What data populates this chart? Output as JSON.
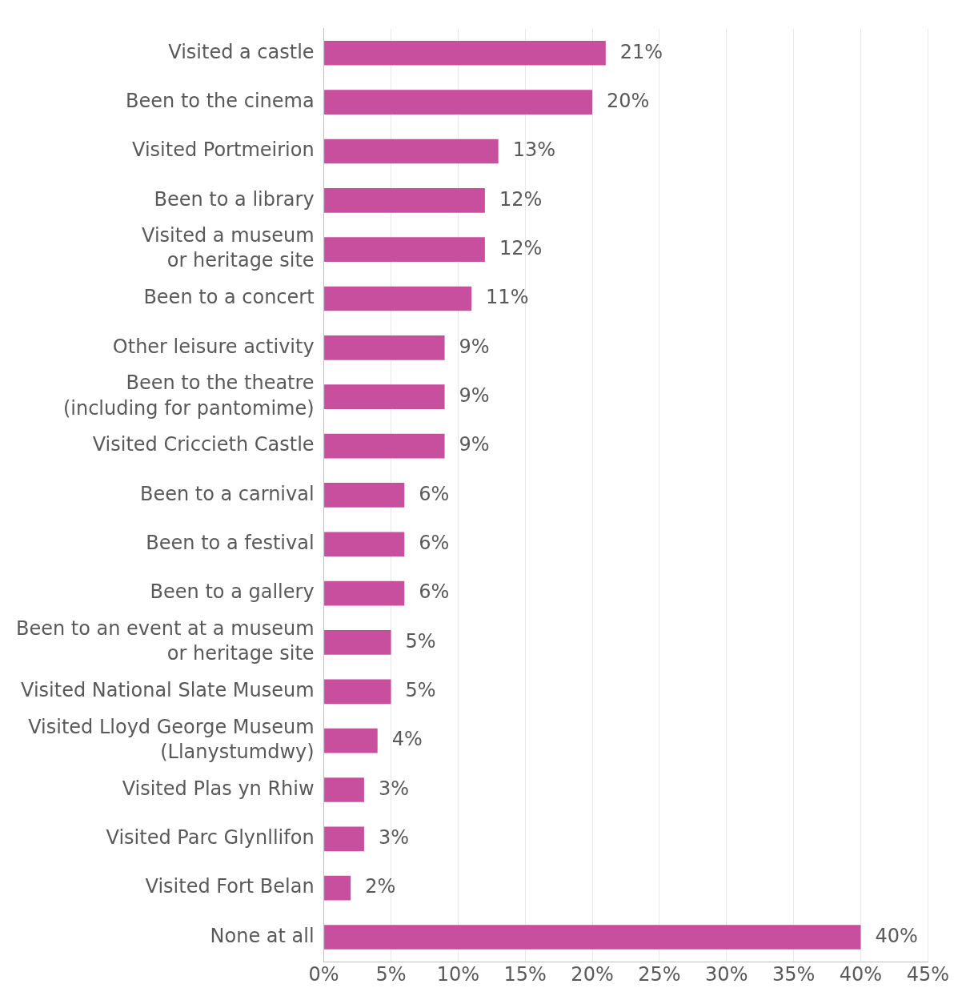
{
  "chart_data": {
    "type": "bar",
    "orientation": "horizontal",
    "categories": [
      "Visited a castle",
      "Been to the cinema",
      "Visited Portmeirion",
      "Been to a library",
      "Visited a museum\nor heritage site",
      "Been to a concert",
      "Other leisure activity",
      "Been to the theatre\n(including for pantomime)",
      "Visited Criccieth Castle",
      "Been to a carnival",
      "Been to a festival",
      "Been to a gallery",
      "Been to an event at a museum\nor heritage site",
      "Visited National Slate Museum",
      "Visited Lloyd George Museum\n(Llanystumdwy)",
      "Visited Plas yn Rhiw",
      "Visited Parc Glynllifon",
      "Visited Fort Belan",
      "None at all"
    ],
    "values": [
      21,
      20,
      13,
      12,
      12,
      11,
      9,
      9,
      9,
      6,
      6,
      6,
      5,
      5,
      4,
      3,
      3,
      2,
      40
    ],
    "value_labels": [
      "21%",
      "20%",
      "13%",
      "12%",
      "12%",
      "11%",
      "9%",
      "9%",
      "9%",
      "6%",
      "6%",
      "6%",
      "5%",
      "5%",
      "4%",
      "3%",
      "3%",
      "2%",
      "40%"
    ],
    "color": "#c74f9d",
    "xlim": [
      0,
      45
    ],
    "xticks": [
      {
        "value": 0,
        "label": "0%"
      },
      {
        "value": 5,
        "label": "5%"
      },
      {
        "value": 10,
        "label": "10%"
      },
      {
        "value": 15,
        "label": "15%"
      },
      {
        "value": 20,
        "label": "20%"
      },
      {
        "value": 25,
        "label": "25%"
      },
      {
        "value": 30,
        "label": "30%"
      },
      {
        "value": 35,
        "label": "35%"
      },
      {
        "value": 40,
        "label": "40%"
      },
      {
        "value": 45,
        "label": "45%"
      }
    ],
    "grid": "x",
    "legend": false
  }
}
